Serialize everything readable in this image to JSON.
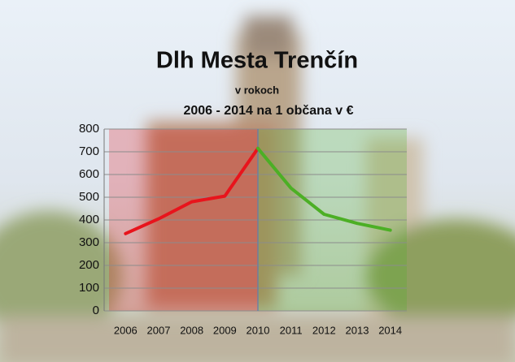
{
  "chart_data": {
    "type": "line",
    "title": "Dlh Mesta Trenčín",
    "subtitle": [
      "v rokoch",
      "2006 - 2014 na 1 občana v €"
    ],
    "categories": [
      "2006",
      "2007",
      "2008",
      "2009",
      "2010",
      "2011",
      "2012",
      "2013",
      "2014"
    ],
    "series": [
      {
        "color": "#e8141c",
        "values": [
          340,
          405,
          480,
          505,
          715,
          null,
          null,
          null,
          null
        ]
      },
      {
        "color": "#4caf25",
        "values": [
          null,
          null,
          null,
          null,
          715,
          540,
          425,
          385,
          355
        ]
      }
    ],
    "ylim": [
      0,
      800
    ],
    "yticks": [
      0,
      100,
      200,
      300,
      400,
      500,
      600,
      700,
      800
    ],
    "grid": true
  }
}
